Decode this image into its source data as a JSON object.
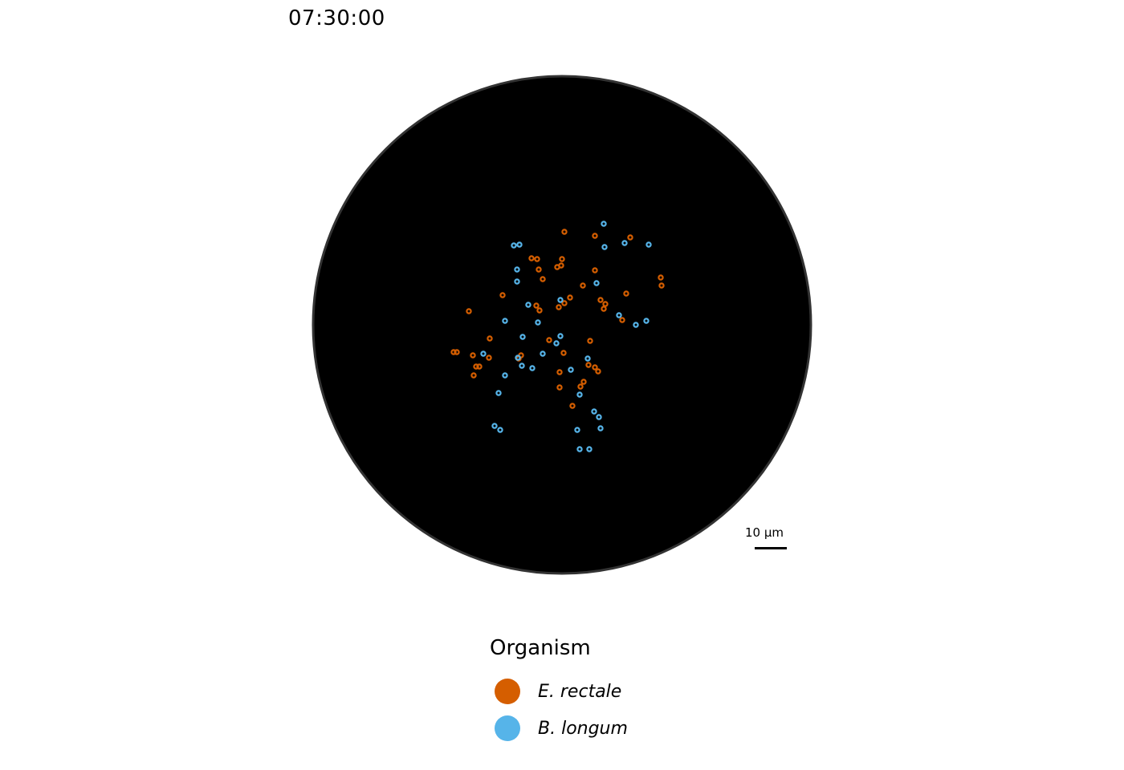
{
  "timestamp": "07:30:00",
  "scale_bar": {
    "label": "10 µm"
  },
  "legend": {
    "title": "Organism",
    "items": [
      {
        "label": "E. rectale",
        "color": "#D55E00"
      },
      {
        "label": "B. longum",
        "color": "#56B4E9"
      }
    ]
  },
  "chart_data": {
    "type": "scatter",
    "background": "#000000",
    "grid": false,
    "legend_position": "bottom",
    "series": [
      {
        "name": "E. rectale",
        "color": "#D55E00",
        "points": [
          [
            3,
            116
          ],
          [
            41,
            111
          ],
          [
            85,
            109
          ],
          [
            -38,
            83
          ],
          [
            0,
            82
          ],
          [
            -1,
            74
          ],
          [
            -31,
            82
          ],
          [
            -6,
            72
          ],
          [
            -29,
            69
          ],
          [
            -24,
            57
          ],
          [
            41,
            68
          ],
          [
            123,
            59
          ],
          [
            124,
            49
          ],
          [
            -74,
            37
          ],
          [
            26,
            49
          ],
          [
            80,
            39
          ],
          [
            -4,
            22
          ],
          [
            10,
            34
          ],
          [
            3,
            27
          ],
          [
            -32,
            24
          ],
          [
            -28,
            18
          ],
          [
            -116,
            17
          ],
          [
            48,
            31
          ],
          [
            54,
            26
          ],
          [
            52,
            20
          ],
          [
            75,
            6
          ],
          [
            -90,
            -17
          ],
          [
            -16,
            -19
          ],
          [
            35,
            -20
          ],
          [
            -135,
            -34
          ],
          [
            -131,
            -34
          ],
          [
            -111,
            -38
          ],
          [
            -91,
            -41
          ],
          [
            -51,
            -38
          ],
          [
            -54,
            -42
          ],
          [
            2,
            -35
          ],
          [
            -107,
            -52
          ],
          [
            -103,
            -52
          ],
          [
            33,
            -50
          ],
          [
            41,
            -53
          ],
          [
            45,
            -58
          ],
          [
            -3,
            -59
          ],
          [
            -110,
            -63
          ],
          [
            27,
            -71
          ],
          [
            23,
            -77
          ],
          [
            -3,
            -78
          ],
          [
            13,
            -101
          ]
        ]
      },
      {
        "name": "B. longum",
        "color": "#56B4E9",
        "points": [
          [
            52,
            126
          ],
          [
            -60,
            99
          ],
          [
            -53,
            100
          ],
          [
            78,
            102
          ],
          [
            108,
            100
          ],
          [
            53,
            97
          ],
          [
            -56,
            69
          ],
          [
            -56,
            54
          ],
          [
            43,
            52
          ],
          [
            -2,
            31
          ],
          [
            -42,
            25
          ],
          [
            71,
            12
          ],
          [
            105,
            5
          ],
          [
            92,
            0
          ],
          [
            -71,
            5
          ],
          [
            -30,
            3
          ],
          [
            -49,
            -15
          ],
          [
            -2,
            -14
          ],
          [
            -7,
            -23
          ],
          [
            -98,
            -36
          ],
          [
            -24,
            -36
          ],
          [
            -55,
            -41
          ],
          [
            32,
            -42
          ],
          [
            -50,
            -51
          ],
          [
            -37,
            -54
          ],
          [
            11,
            -56
          ],
          [
            -71,
            -63
          ],
          [
            -79,
            -85
          ],
          [
            22,
            -87
          ],
          [
            40,
            -108
          ],
          [
            46,
            -115
          ],
          [
            -84,
            -126
          ],
          [
            -77,
            -131
          ],
          [
            19,
            -131
          ],
          [
            48,
            -129
          ],
          [
            22,
            -155
          ],
          [
            34,
            -155
          ]
        ]
      }
    ]
  }
}
